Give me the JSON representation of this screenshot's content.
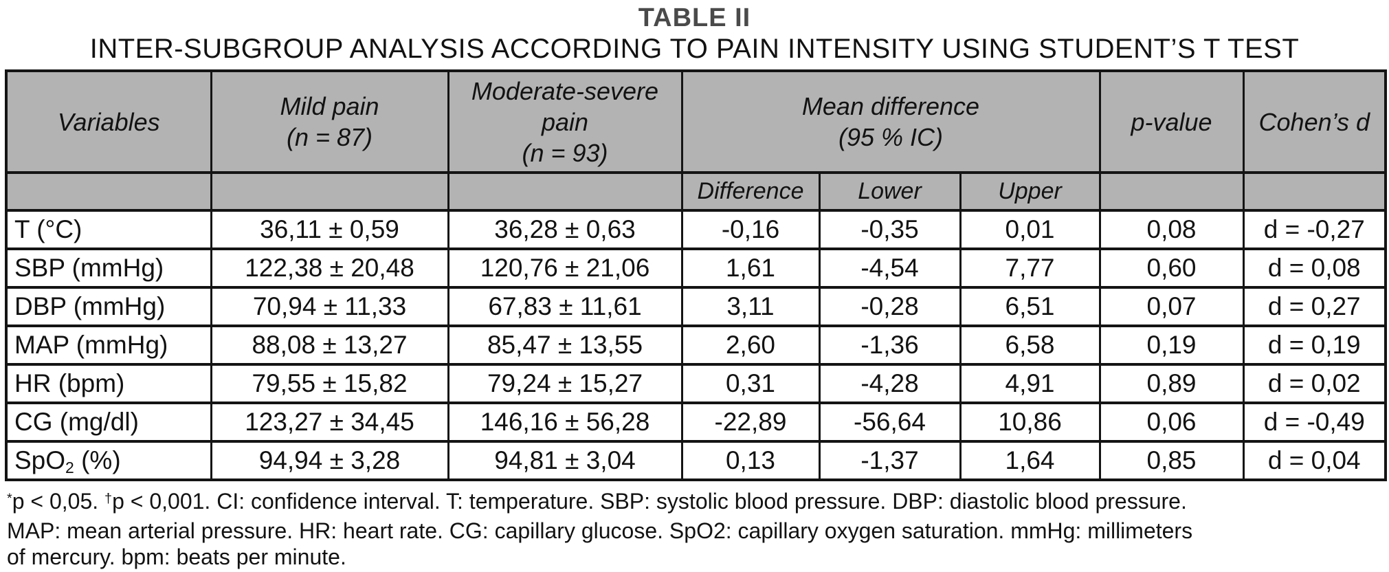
{
  "page": {
    "title": "TABLE II",
    "subtitle": "INTER-SUBGROUP ANALYSIS ACCORDING TO PAIN INTENSITY USING STUDENT’S T TEST"
  },
  "colors": {
    "header_bg": "#b3b3b3",
    "border": "#141414",
    "title": "#4a4a4a",
    "text": "#121212"
  },
  "table": {
    "header": {
      "variables": "Variables",
      "mild_line1": "Mild pain",
      "mild_line2": "(n = 87)",
      "modsev_line1": "Moderate-severe",
      "modsev_line2": "pain",
      "modsev_line3": "(n = 93)",
      "meandiff_line1": "Mean difference",
      "meandiff_line2": "(95 % IC)",
      "pvalue": "p-value",
      "cohensd": "Cohen’s d",
      "sub": {
        "difference": "Difference",
        "lower": "Lower",
        "upper": "Upper"
      }
    },
    "rows": [
      {
        "variable": "T (°C)",
        "mild": "36,11 ± 0,59",
        "modsev": "36,28 ± 0,63",
        "difference": "-0,16",
        "lower": "-0,35",
        "upper": "0,01",
        "p": "0,08",
        "d": "d = -0,27"
      },
      {
        "variable": "SBP (mmHg)",
        "mild": "122,38 ± 20,48",
        "modsev": "120,76 ± 21,06",
        "difference": "1,61",
        "lower": "-4,54",
        "upper": "7,77",
        "p": "0,60",
        "d": "d = 0,08"
      },
      {
        "variable": "DBP (mmHg)",
        "mild": "70,94 ± 11,33",
        "modsev": "67,83 ± 11,61",
        "difference": "3,11",
        "lower": "-0,28",
        "upper": "6,51",
        "p": "0,07",
        "d": "d = 0,27"
      },
      {
        "variable": "MAP (mmHg)",
        "mild": "88,08 ± 13,27",
        "modsev": "85,47 ± 13,55",
        "difference": "2,60",
        "lower": "-1,36",
        "upper": "6,58",
        "p": "0,19",
        "d": "d = 0,19"
      },
      {
        "variable": "HR (bpm)",
        "mild": "79,55 ± 15,82",
        "modsev": "79,24 ± 15,27",
        "difference": "0,31",
        "lower": "-4,28",
        "upper": "4,91",
        "p": "0,89",
        "d": "d = 0,02"
      },
      {
        "variable": "CG (mg/dl)",
        "mild": "123,27 ± 34,45",
        "modsev": "146,16 ± 56,28",
        "difference": "-22,89",
        "lower": "-56,64",
        "upper": "10,86",
        "p": "0,06",
        "d": "d = -0,49"
      },
      {
        "variable_rich": [
          {
            "t": "SpO"
          },
          {
            "sub": "2"
          },
          {
            "t": " (%)"
          }
        ],
        "mild": "94,94 ± 3,28",
        "modsev": "94,81 ± 3,04",
        "difference": "0,13",
        "lower": "-1,37",
        "upper": "1,64",
        "p": "0,85",
        "d": "d = 0,04"
      }
    ]
  },
  "footnote": {
    "lines": [
      {
        "segments": [
          {
            "sup": "*"
          },
          {
            "t": "p < 0,05. "
          },
          {
            "sup": "†"
          },
          {
            "t": "p < 0,001. CI: confidence interval. T: temperature. SBP: systolic blood pressure. DBP: diastolic blood pressure."
          }
        ]
      },
      {
        "segments": [
          {
            "t": "MAP: mean arterial pressure. HR: heart rate. CG: capillary glucose. SpO2: capillary oxygen saturation. mmHg: millimeters"
          }
        ]
      },
      {
        "segments": [
          {
            "t": "of mercury. bpm: beats per minute."
          }
        ]
      }
    ]
  }
}
